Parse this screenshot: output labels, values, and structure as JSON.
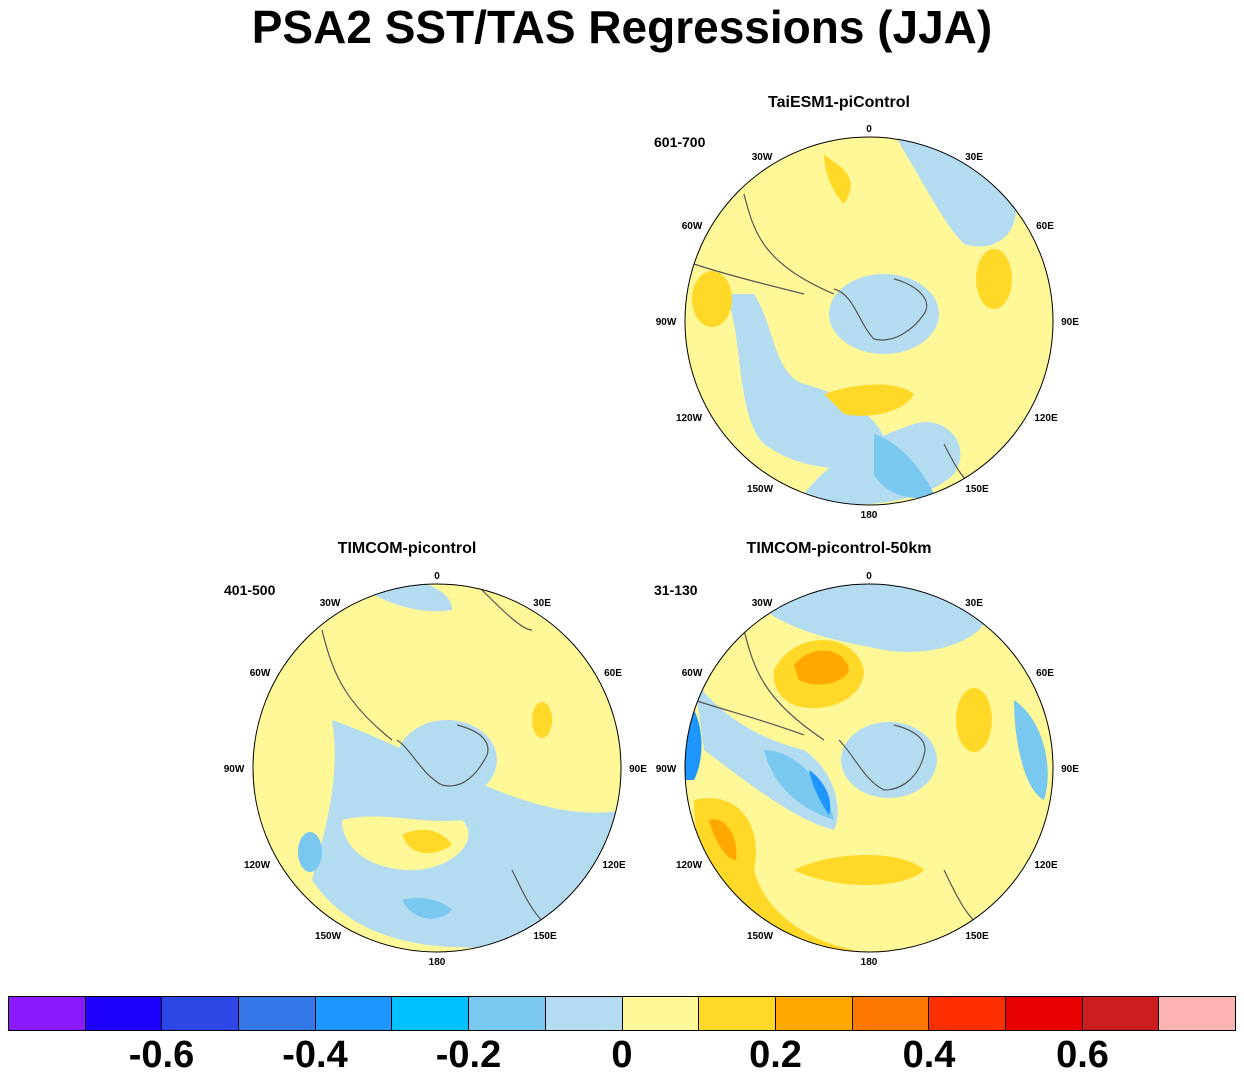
{
  "title": "PSA2 SST/TAS Regressions (JJA)",
  "panels": [
    {
      "id": "taiesm",
      "title": "TaiESM1-piControl",
      "period": "601-700"
    },
    {
      "id": "timcom",
      "title": "TIMCOM-picontrol",
      "period": "401-500"
    },
    {
      "id": "timcom50",
      "title": "TIMCOM-picontrol-50km",
      "period": "31-130"
    }
  ],
  "lon_labels": [
    "0",
    "30E",
    "60E",
    "90E",
    "120E",
    "150E",
    "180",
    "150W",
    "120W",
    "90W",
    "60W",
    "30W"
  ],
  "colorbar": {
    "colors": [
      "#8c1aff",
      "#1e00ff",
      "#2d46e6",
      "#3378e6",
      "#1e96ff",
      "#00c0ff",
      "#78c8f0",
      "#b4dcf0",
      "#fff898",
      "#ffd828",
      "#ffa800",
      "#ff7800",
      "#ff3000",
      "#e60000",
      "#cc1e1e",
      "#ffb4b4"
    ],
    "labels": [
      "-0.6",
      "-0.4",
      "-0.2",
      "0",
      "0.2",
      "0.4",
      "0.6"
    ]
  },
  "legend": {
    "neg_light": "#b4dcf0",
    "neg_mid": "#78c8f0",
    "neg_strong": "#1e96ff",
    "pos_light": "#fff898",
    "pos_mid": "#ffd828",
    "pos_strong": "#ffa800"
  }
}
